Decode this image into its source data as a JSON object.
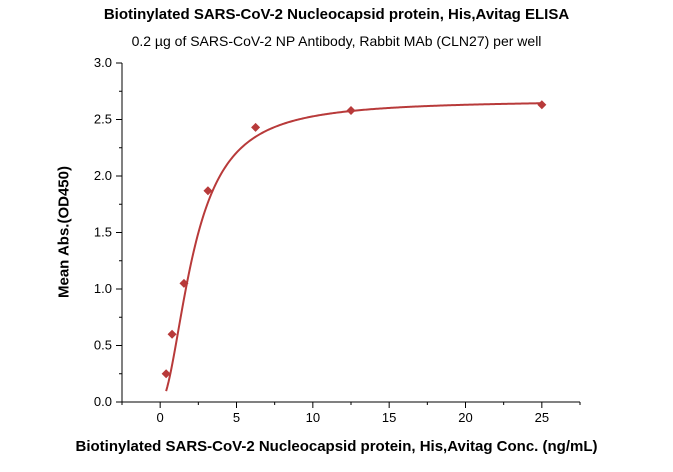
{
  "chart_data": {
    "type": "scatter",
    "title": "Biotinylated SARS-CoV-2 Nucleocapsid protein, His,Avitag ELISA",
    "subtitle": "0.2 µg of SARS-CoV-2 NP Antibody, Rabbit MAb (CLN27) per well",
    "xlabel": "Biotinylated SARS-CoV-2 Nucleocapsid protein, His,Avitag Conc. (ng/mL)",
    "ylabel": "Mean Abs.(OD450)",
    "xlim": [
      -2.5,
      27.5
    ],
    "ylim": [
      0,
      3.0
    ],
    "x_ticks": [
      0,
      5,
      10,
      15,
      20,
      25
    ],
    "y_ticks": [
      "0.0",
      "0.5",
      "1.0",
      "1.5",
      "2.0",
      "2.5",
      "3.0"
    ],
    "grid": false,
    "color": "#b83a3a",
    "series": [
      {
        "x": [
          0.39,
          0.78,
          1.56,
          3.13,
          6.25,
          12.5,
          25
        ],
        "y": [
          0.25,
          0.6,
          1.05,
          1.87,
          2.43,
          2.58,
          2.63
        ],
        "fit": "4PL"
      }
    ]
  }
}
